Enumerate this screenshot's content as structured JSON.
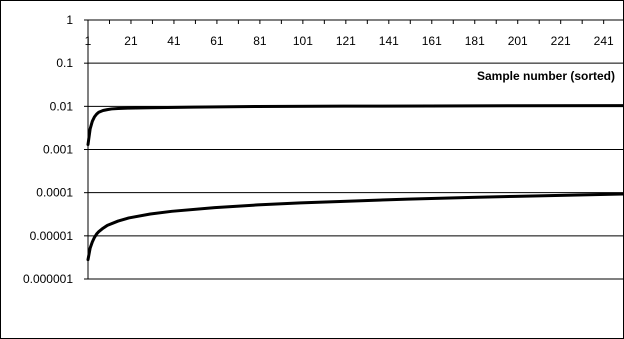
{
  "chart_data": {
    "type": "line",
    "title": "",
    "xlabel": "Sample number (sorted)",
    "ylabel": "",
    "x_scale": "linear",
    "y_scale": "log",
    "xlim": [
      1,
      250
    ],
    "ylim": [
      1e-06,
      1
    ],
    "x_tick_labels": [
      "1",
      "21",
      "41",
      "61",
      "81",
      "101",
      "121",
      "141",
      "161",
      "181",
      "201",
      "221",
      "241"
    ],
    "x_tick_values": [
      1,
      21,
      41,
      61,
      81,
      101,
      121,
      141,
      161,
      181,
      201,
      221,
      241
    ],
    "y_tick_labels": [
      "1",
      "0.1",
      "0.01",
      "0.001",
      "0.0001",
      "0.00001",
      "0.000001"
    ],
    "y_tick_values": [
      1,
      0.1,
      0.01,
      0.001,
      0.0001,
      1e-05,
      1e-06
    ],
    "grid": "horizontal",
    "legend": "none",
    "series": [
      {
        "color": "#000000",
        "x": [
          1,
          2,
          3,
          4,
          5,
          6,
          8,
          10,
          12,
          15,
          20,
          30,
          50,
          80,
          120,
          160,
          200,
          250
        ],
        "y": [
          0.0013,
          0.003,
          0.0045,
          0.0057,
          0.0066,
          0.0073,
          0.008,
          0.0084,
          0.0087,
          0.0089,
          0.0091,
          0.0093,
          0.0096,
          0.0099,
          0.0101,
          0.0102,
          0.0103,
          0.0104
        ]
      },
      {
        "color": "#000000",
        "x": [
          1,
          2,
          3,
          4,
          5,
          6,
          8,
          10,
          15,
          20,
          30,
          40,
          60,
          80,
          100,
          120,
          150,
          180,
          200,
          250
        ],
        "y": [
          2.8e-06,
          5.2e-06,
          7.2e-06,
          9.2e-06,
          1.1e-05,
          1.25e-05,
          1.5e-05,
          1.75e-05,
          2.2e-05,
          2.6e-05,
          3.2e-05,
          3.7e-05,
          4.5e-05,
          5.2e-05,
          5.8e-05,
          6.3e-05,
          7.1e-05,
          7.8e-05,
          8.2e-05,
          9.3e-05
        ]
      }
    ]
  }
}
